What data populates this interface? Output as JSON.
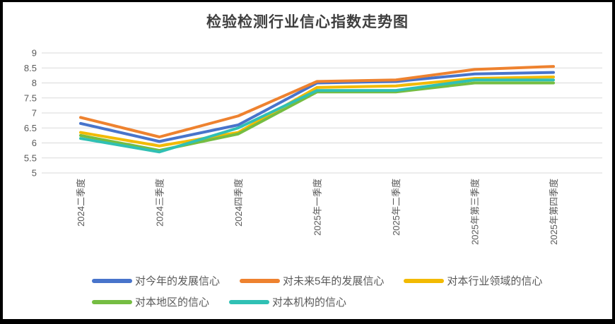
{
  "frame": {
    "background_color": "#ffffff",
    "border_color": "#000000"
  },
  "chart_data": {
    "type": "line",
    "title": "检验检测行业信心指数走势图",
    "categories": [
      "2024二季度",
      "2024三季度",
      "2024四季度",
      "2025年一季度",
      "2025年二季度",
      "2025年第三季度",
      "2025年第四季度"
    ],
    "series": [
      {
        "name": "对今年的发展信心",
        "color": "#4874CB",
        "values": [
          6.65,
          6.05,
          6.6,
          8.0,
          8.05,
          8.3,
          8.35
        ]
      },
      {
        "name": "对未来5年的发展信心",
        "color": "#EE822F",
        "values": [
          6.85,
          6.2,
          6.9,
          8.05,
          8.1,
          8.45,
          8.55
        ]
      },
      {
        "name": "对本行业领域的信心",
        "color": "#F2BA02",
        "values": [
          6.35,
          5.9,
          6.35,
          7.85,
          7.9,
          8.15,
          8.2
        ]
      },
      {
        "name": "对本地区的信心",
        "color": "#75BD42",
        "values": [
          6.25,
          5.75,
          6.3,
          7.7,
          7.7,
          8.0,
          8.0
        ]
      },
      {
        "name": "对本机构的信心",
        "color": "#30C0B4",
        "values": [
          6.15,
          5.7,
          6.5,
          7.75,
          7.75,
          8.1,
          8.1
        ]
      }
    ],
    "xlabel": "",
    "ylabel": "",
    "ylim": [
      5,
      9
    ],
    "yticks": [
      9,
      8.5,
      8,
      7.5,
      7,
      6.5,
      6,
      5.5,
      5
    ],
    "grid": true,
    "gridline_color": "#dadada",
    "axis_label_color": "#595959",
    "legend_position": "bottom",
    "legend_rows": [
      [
        0,
        1,
        2
      ],
      [
        3,
        4
      ]
    ]
  }
}
